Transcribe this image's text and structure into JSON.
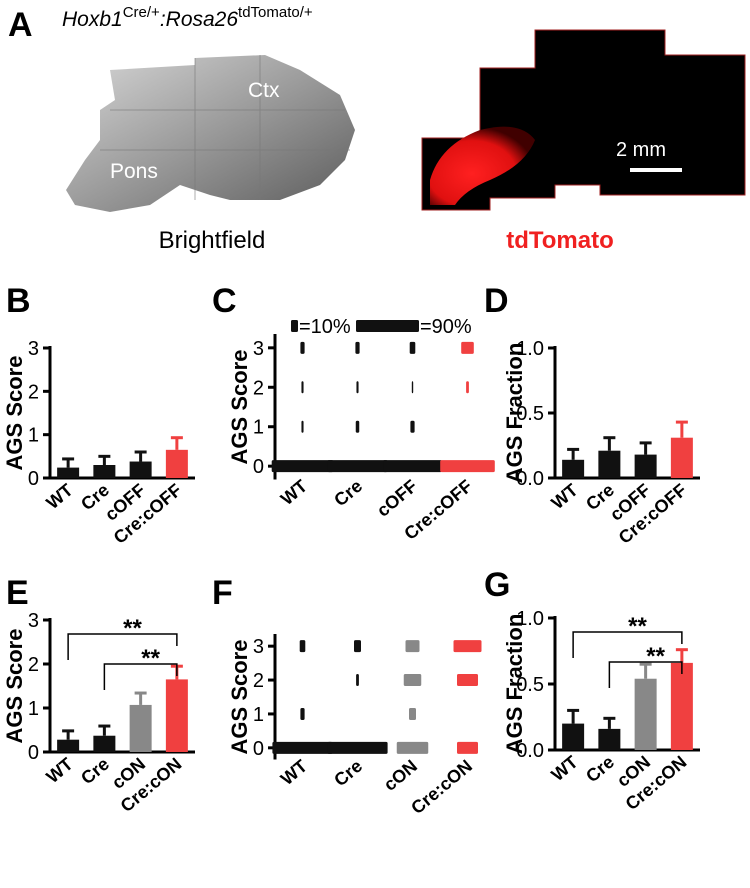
{
  "panel_a": {
    "letter": "A",
    "title_parts": [
      "Hoxb1",
      "Cre/+",
      ":Rosa26",
      "tdTomato/+"
    ],
    "region_labels": [
      "Ctx",
      "Pons"
    ],
    "scale_bar": "2 mm",
    "image_labels": [
      "Brightfield",
      "tdTomato"
    ]
  },
  "chart_data": [
    {
      "panel": "B",
      "type": "bar",
      "ylabel": "AGS Score",
      "categories": [
        "WT",
        "Cre",
        "cOFF",
        "Cre:cOFF"
      ],
      "values": [
        0.24,
        0.3,
        0.38,
        0.65
      ],
      "errors": [
        0.2,
        0.2,
        0.22,
        0.28
      ],
      "colors": [
        "#111111",
        "#111111",
        "#111111",
        "#f04040"
      ],
      "ylim": [
        0,
        3
      ],
      "yticks": [
        0,
        1,
        2,
        3
      ]
    },
    {
      "panel": "C",
      "type": "distribution",
      "ylabel": "AGS Score",
      "categories": [
        "WT",
        "Cre",
        "cOFF",
        "Cre:cOFF"
      ],
      "values": [
        [
          88,
          3,
          3,
          6
        ],
        [
          86,
          5,
          3,
          6
        ],
        [
          84,
          6,
          2,
          8
        ],
        [
          78,
          0,
          4,
          18
        ]
      ],
      "colors": [
        "#111111",
        "#111111",
        "#111111",
        "#f04040"
      ],
      "legend": [
        {
          "value": 10,
          "label": "=10%"
        },
        {
          "value": 90,
          "label": "=90%"
        }
      ],
      "ylim": [
        -0.3,
        3.3
      ],
      "yticks": [
        0,
        1,
        2,
        3
      ]
    },
    {
      "panel": "D",
      "type": "bar",
      "ylabel": "AGS Fraction",
      "categories": [
        "WT",
        "Cre",
        "cOFF",
        "Cre:cOFF"
      ],
      "values": [
        0.14,
        0.21,
        0.18,
        0.31
      ],
      "errors": [
        0.08,
        0.1,
        0.09,
        0.12
      ],
      "colors": [
        "#111111",
        "#111111",
        "#111111",
        "#f04040"
      ],
      "ylim": [
        0,
        1
      ],
      "yticks": [
        {
          "value": 0,
          "label": "0.0"
        },
        {
          "value": 0.5,
          "label": "0.5"
        },
        {
          "value": 1,
          "label": "1.0"
        }
      ]
    },
    {
      "panel": "E",
      "type": "bar",
      "ylabel": "AGS Score",
      "categories": [
        "WT",
        "Cre",
        "cON",
        "Cre:cON"
      ],
      "values": [
        0.28,
        0.37,
        1.07,
        1.65
      ],
      "errors": [
        0.2,
        0.22,
        0.27,
        0.3
      ],
      "colors": [
        "#111111",
        "#111111",
        "#888888",
        "#f04040"
      ],
      "ylim": [
        0,
        3
      ],
      "yticks": [
        0,
        1,
        2,
        3
      ],
      "comparisons": [
        {
          "label": "**",
          "pair": [
            "WT",
            "Cre:cON"
          ]
        },
        {
          "label": "**",
          "pair": [
            "Cre",
            "Cre:cON"
          ]
        }
      ]
    },
    {
      "panel": "F",
      "type": "distribution",
      "ylabel": "AGS Score",
      "categories": [
        "WT",
        "Cre",
        "cON",
        "Cre:cON"
      ],
      "values": [
        [
          86,
          6,
          0,
          8
        ],
        [
          86,
          0,
          4,
          10
        ],
        [
          45,
          10,
          25,
          20
        ],
        [
          30,
          0,
          30,
          40
        ]
      ],
      "colors": [
        "#111111",
        "#111111",
        "#888888",
        "#f04040"
      ],
      "ylim": [
        -0.3,
        3.3
      ],
      "yticks": [
        0,
        1,
        2,
        3
      ]
    },
    {
      "panel": "G",
      "type": "bar",
      "ylabel": "AGS  Fraction",
      "categories": [
        "WT",
        "Cre",
        "cON",
        "Cre:cON"
      ],
      "values": [
        0.2,
        0.16,
        0.54,
        0.66
      ],
      "errors": [
        0.1,
        0.08,
        0.11,
        0.1
      ],
      "colors": [
        "#111111",
        "#111111",
        "#888888",
        "#f04040"
      ],
      "ylim": [
        0,
        1
      ],
      "yticks": [
        {
          "value": 0,
          "label": "0.0"
        },
        {
          "value": 0.5,
          "label": "0.5"
        },
        {
          "value": 1,
          "label": "1.0"
        }
      ],
      "comparisons": [
        {
          "label": "**",
          "pair": [
            "WT",
            "Cre:cON"
          ]
        },
        {
          "label": "**",
          "pair": [
            "Cre",
            "Cre:cON"
          ]
        }
      ]
    }
  ]
}
